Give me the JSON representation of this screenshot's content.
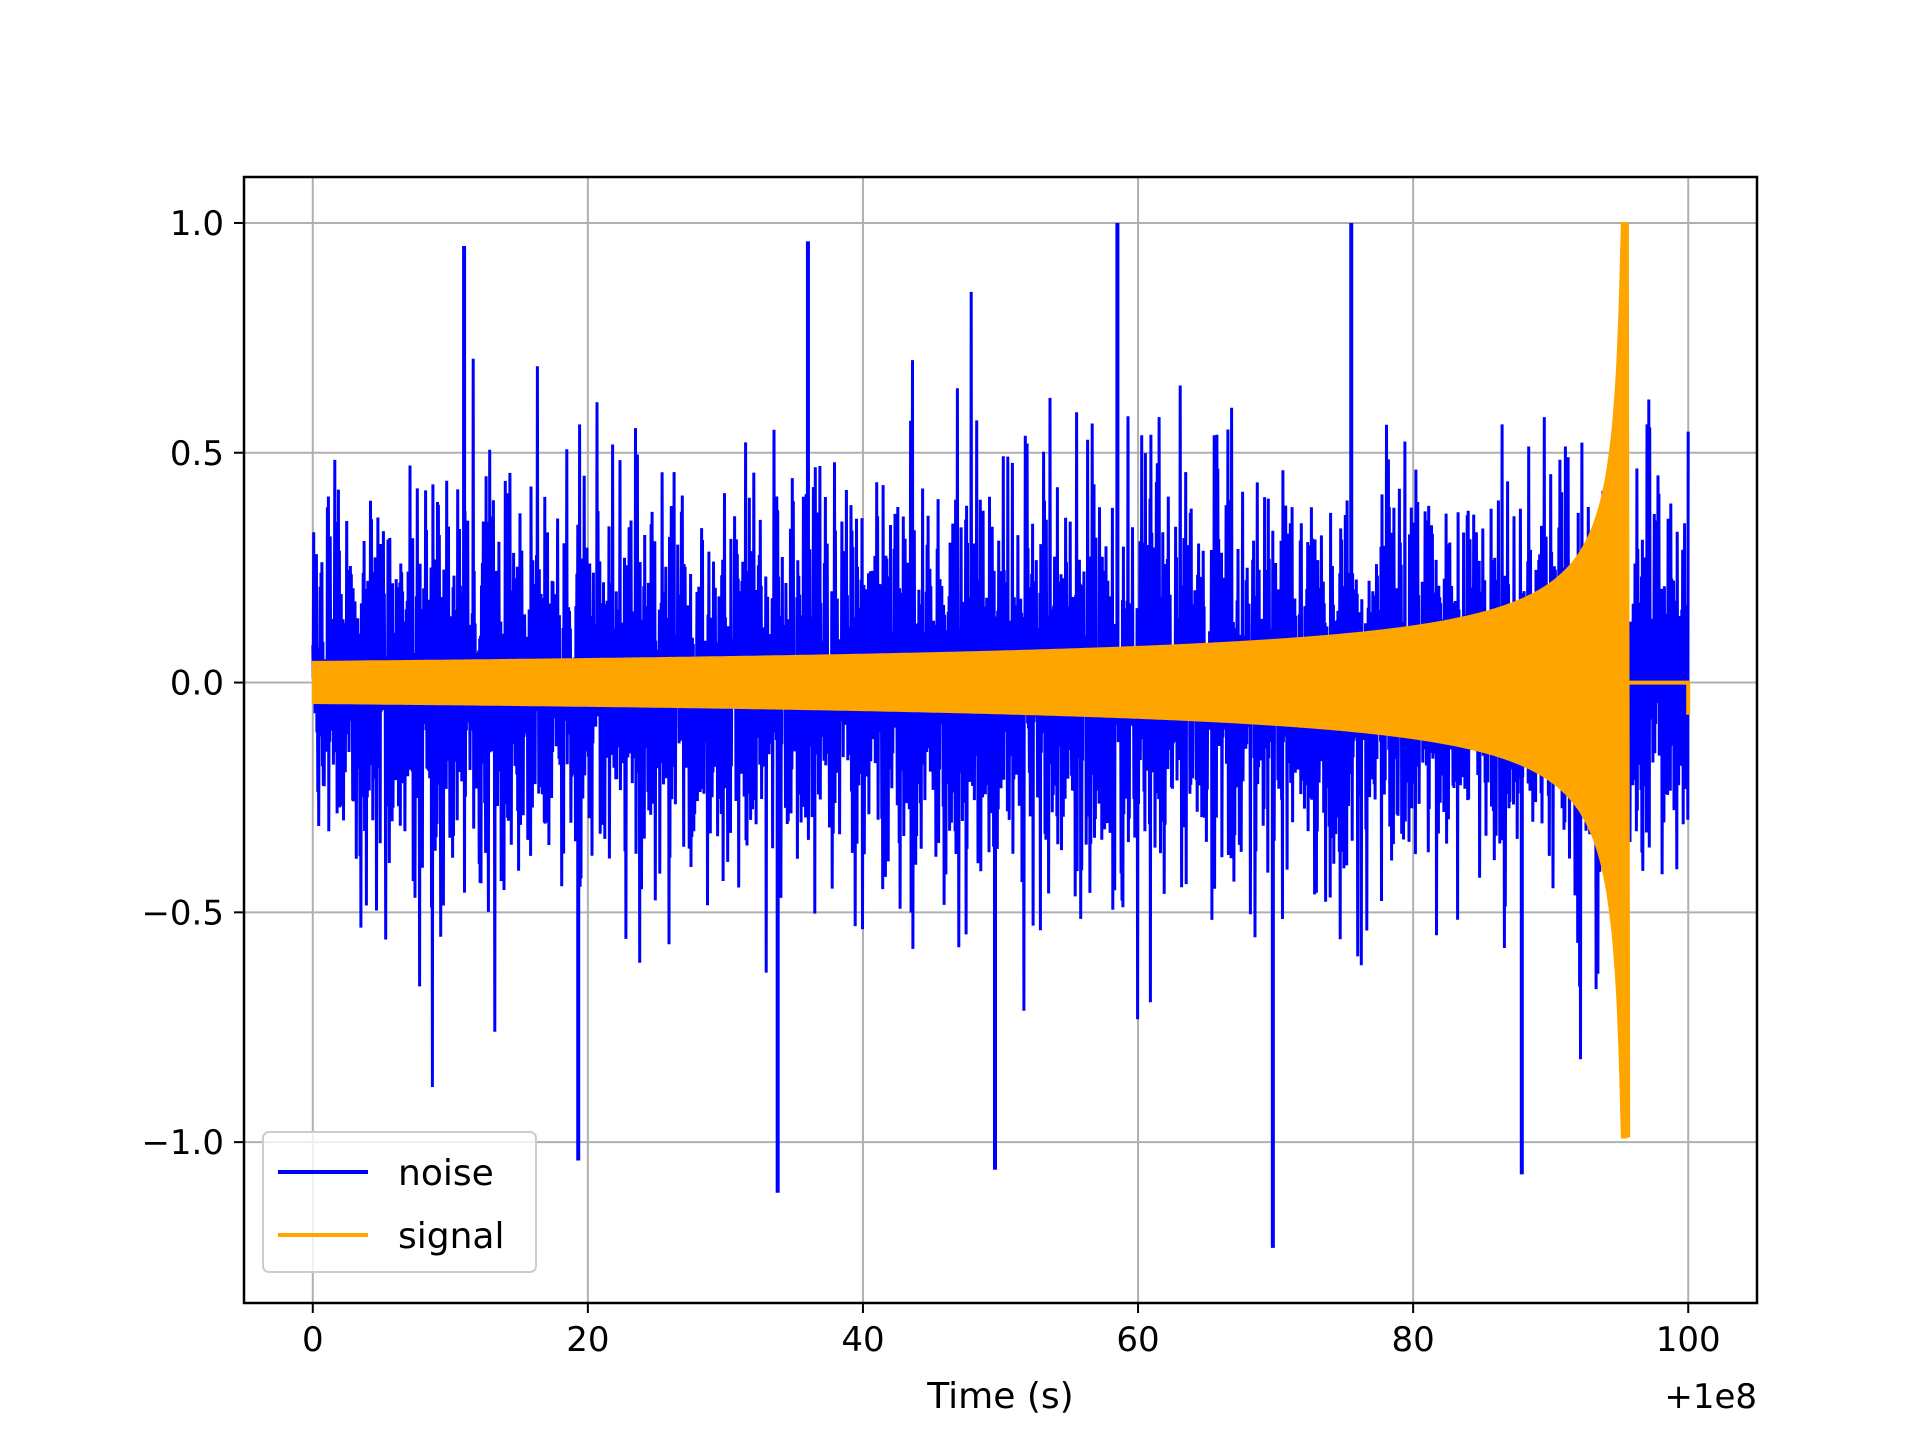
{
  "chart_data": {
    "type": "line",
    "title": "",
    "xlabel": "Time (s)",
    "ylabel": "",
    "x_offset_label": "+1e8",
    "xlim": [
      -5,
      105
    ],
    "ylim": [
      -1.35,
      1.1
    ],
    "xticks": [
      0,
      20,
      40,
      60,
      80,
      100
    ],
    "xtick_labels": [
      "0",
      "20",
      "40",
      "60",
      "80",
      "100"
    ],
    "yticks": [
      -1.0,
      -0.5,
      0.0,
      0.5,
      1.0
    ],
    "ytick_labels": [
      "−1.0",
      "−0.5",
      "0.0",
      "0.5",
      "1.0"
    ],
    "grid": true,
    "legend_position": "lower-left",
    "series": [
      {
        "name": "noise",
        "color": "#0000ff",
        "x_range": [
          0,
          100
        ],
        "y_range": [
          -1.23,
          1.0
        ],
        "description_values": {
          "typical_envelope": [
            -0.7,
            0.75
          ],
          "notable_peaks": [
            [
              11,
              0.95
            ],
            [
              36,
              0.96
            ],
            [
              58.5,
              1.0
            ],
            [
              75.5,
              1.0
            ]
          ],
          "notable_troughs": [
            [
              19.3,
              -1.04
            ],
            [
              33.8,
              -1.11
            ],
            [
              49.6,
              -1.06
            ],
            [
              69.8,
              -1.23
            ],
            [
              87.9,
              -1.07
            ]
          ]
        }
      },
      {
        "name": "signal",
        "color": "#ffa500",
        "x_range": [
          0,
          100
        ],
        "amplitude_start": 0.045,
        "peak": [
          95.5,
          1.0
        ],
        "trough": [
          95.6,
          -0.99
        ],
        "post_merger_value": 0.0,
        "end_value": -0.07
      }
    ]
  },
  "legend": {
    "items": [
      {
        "label": "noise",
        "color": "#0000ff"
      },
      {
        "label": "signal",
        "color": "#ffa500"
      }
    ]
  }
}
